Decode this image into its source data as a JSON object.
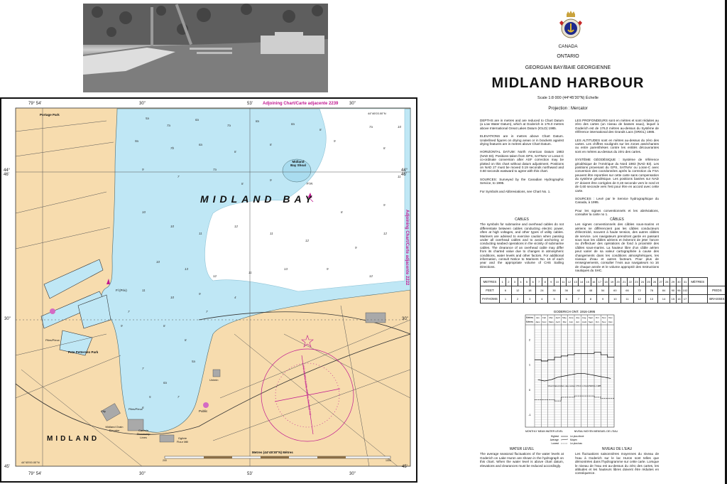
{
  "title_block": {
    "country": "CANADA",
    "province": "ONTARIO",
    "region": "GEORGIAN BAY/BAIE GEORGIENNE",
    "title": "MIDLAND HARBOUR",
    "scale": "Scale 1:8 000  (44°45'30\"N) Échelle",
    "projection": "Projection : Mercator"
  },
  "notes_en": [
    "DEPTHS are in metres and are reduced to Chart Datum (a Low Water Datum), which at Goderich is 176.0 metres above International Great Lakes Datum (IGLD) 1985.",
    "ELEVATIONS are in metres above Chart Datum. Underlined figures on drying areas or in brackets against drying features are in metres above Chart Datum.",
    "HORIZONTAL DATUM: North American Datum 1983 (NAD 83). Positions taken from GPS, SATNAV or Loran-C co-ordinate conversion after ASF correction may be plotted on this chart without datum adjustment. Positions on NAD 27 must be moved 0.19 seconds northward and 0.60 seconds eastward to agree with this chart.",
    "SOURCES: Surveyed by the Canadian Hydrographic Service, to 1995.",
    "For Symbols and Abbreviations, see Chart No. 1."
  ],
  "notes_fr": [
    "LES PROFONDEURS sont en mètres et sont réduites au zéro des cartes (un niveau de basses eaux), lequel à Goderich est de 176,0 mètres au-dessus du Système de référence international des Grands Lacs (SRIGL) 1985.",
    "LES ALTITUDES sont en mètres au-dessus du zéro des cartes. Les chiffres soulignés sur les zones asséchantes ou entre parenthèses contre les entités découvrantes sont en mètres au-dessus du zéro des cartes.",
    "SYSTÈME GÉODÉSIQUE : Système de référence géodésique de l'Amérique du Nord 1983 (NAD 83). Les positions provenant du GPS, SATNAV ou Loran-C avec conversion des coordonnées après la correction du FSA peuvent être reportées sur cette carte sans compensation du système géodésique. Les positions basées sur NAD 27 doivent être corrigées de 0,19 seconde vers le nord et de 0,60 seconde vers l'est pour être en accord avec cette carte.",
    "SOURCES : Levé par le Service hydrographique du Canada, à 1995.",
    "Pour les signes conventionnels et les abréviations, consulter la carte no 1."
  ],
  "cables_en": {
    "heading": "CABLES",
    "text": "The symbols for submarine and overhead cables do not differentiate between cables conducting electric power, often at high voltages, and other types of utility cables. Mariners are advised to exercise caution when passing under all overhead cables and to avoid anchoring or conducting seabed operations in the vicinity of submarine cables. The clearance of an overhead cable may differ from its charted value due to changes in atmospheric conditions, water levels and other factors. For additional information, consult Notice to Mariners No. 16 of each year and the appropriate volume of CHS Sailing Directions."
  },
  "cables_fr": {
    "heading": "CÂBLES",
    "text": "Les signes conventionnels des câbles sous-marins et aériens ne différencient pas les câbles conducteurs d'électricité, souvent à haute tension, des autres câbles de service. Les navigateurs prendront garde en passant sous tous les câbles aériens et éviteront de jeter l'ancre ou d'effectuer des opérations de fond à proximité des câbles sous-marins. La hauteur libre d'un câble aérien peut varier de sa valeur cartographiée à cause des changements dans les conditions atmosphériques, les niveaux d'eau et autres facteurs. Pour plus de renseignements, consulter l'Avis aux navigateurs no 16 de chaque année et le volume approprié des Instructions nautiques du SHC."
  },
  "conversion_table": {
    "metres_label": "METRES",
    "metres_label_fr": "MÈTRES",
    "feet_label": "FEET",
    "feet_label_fr": "PIEDS",
    "fathoms_label": "FATHOMS",
    "fathoms_label_fr": "BRASSES",
    "metres": [
      1,
      2,
      3,
      4,
      5,
      6,
      7,
      8,
      9,
      10,
      11,
      12,
      13,
      14,
      15,
      16,
      17,
      18,
      19,
      20,
      21,
      22,
      23,
      24,
      25,
      26,
      27,
      28,
      29,
      30,
      31
    ],
    "feet": [
      6,
      12,
      18,
      24,
      30,
      36,
      42,
      48,
      54,
      60,
      66,
      72,
      78,
      84,
      90,
      96,
      102
    ],
    "fathoms": [
      1,
      2,
      3,
      4,
      5,
      6,
      7,
      8,
      9,
      10,
      11,
      12,
      13,
      14,
      15,
      16,
      17
    ]
  },
  "hydrograph": {
    "title": "GODERICH ONT. 1916-1995",
    "unit_label": "Metres",
    "unit_label_fr": "Mètres",
    "months": [
      "Jan.",
      "Feb.",
      "Mar.",
      "April",
      "May",
      "June",
      "July",
      "Aug.",
      "Sept.",
      "Oct.",
      "Nov.",
      "Dec."
    ],
    "months_fr": [
      "Janv.",
      "Févr.",
      "Mars",
      "Avril",
      "Mai",
      "Juin",
      "Juil.",
      "Août",
      "Sept.",
      "Oct.",
      "Nov.",
      "Déc."
    ],
    "y_ticks": [
      "2",
      "1",
      "0",
      "-1"
    ],
    "ylim": [
      -1.5,
      2.6
    ],
    "highest": [
      1.2,
      1.15,
      1.2,
      1.3,
      1.35,
      1.4,
      1.45,
      1.45,
      1.45,
      1.5,
      1.4,
      1.3
    ],
    "average": [
      0.4,
      0.35,
      0.4,
      0.5,
      0.55,
      0.6,
      0.65,
      0.65,
      0.6,
      0.55,
      0.5,
      0.45
    ],
    "lowest": [
      -0.4,
      -0.4,
      -0.4,
      -0.45,
      -0.3,
      -0.3,
      -0.25,
      -0.25,
      -0.25,
      -0.3,
      -0.35,
      -0.35
    ],
    "datum_label": "Chart Datum/Zéro des cartes 176.0 m IGLD/SRIGL 1985",
    "caption_en": "MONTHLY MEAN WATER LEVEL",
    "caption_fr": "NIVEAU MOYEN MENSUEL DE L'EAU",
    "legend": [
      {
        "en": "Highest",
        "fr": "Le plus élevé"
      },
      {
        "en": "Average",
        "fr": "Moyen"
      },
      {
        "en": "Lowest",
        "fr": "Le plus bas"
      }
    ]
  },
  "water_level_en": {
    "heading": "WATER LEVEL",
    "text": "The average seasonal fluctuations of the water levels at Goderich on Lake Huron are shown in the hydrograph on this chart. When the water level is above chart datum, elevations and clearances must be reduced accordingly."
  },
  "water_level_fr": {
    "heading": "NIVEAU DE L'EAU",
    "text": "Les fluctuations saisonnières moyennes du niveau de l'eau à Goderich sur le lac Huron sont telles que démontrées dans l'hydrogramme sur cette carte. Lorsque le niveau de l'eau est au-dessus du zéro des cartes, les altitudes et les hauteurs libres doivent être réduites en conséquence."
  },
  "map": {
    "colors": {
      "land": "#f7dcae",
      "shallow": "#bfe7f5",
      "deep": "#ffffff",
      "magenta": "#c01890"
    },
    "top_ticks": [
      "79° 54'",
      "30\"",
      "53'",
      "30\""
    ],
    "bottom_ticks": [
      "79° 54'",
      "30\"",
      "53'",
      "30\""
    ],
    "left_ticks": [
      "44° 46'",
      "30\"",
      "45'"
    ],
    "right_ticks": [
      "44° 46'",
      "30\"",
      "45'"
    ],
    "adjoining_top": "Adjoining Chart/Carte adjacente 2239",
    "adjoining_right": "Adjoining Chart/Carte adjacente 2222",
    "corner_top_right": "44°46'03.00\"N",
    "corner_bottom_left": "44°45'00.00\"N",
    "labels": {
      "bay": "MIDLAND BAY",
      "town": "MIDLAND",
      "portage_park": "Portage Park",
      "pete_pettersen_park": "Pete Pettersen Park",
      "shoal": "Midland Bay Shoal",
      "fl_r": "Fl R",
      "fl_priv": "Fl (Priv)",
      "piles": "Piles/Pieux",
      "piles2": "Piles/Pieux",
      "grain_elevator": "Midland Grain Elevator",
      "canada_steamship": "Canada Steamship Lines",
      "ogilvie": "Ogilvie Flour Mill",
      "public": "Public",
      "unimin": "Unimin",
      "city": "City",
      "compass": "VAR 10°30'W (1995) ANNUAL CHANGE 7'W"
    },
    "scale_bar": {
      "label": "Metres (44°45'30\"N) Mètres",
      "start": "200",
      "end": "1000"
    },
    "soundings": [
      "5a",
      "7a",
      "6a",
      "7a",
      "8a",
      "8a",
      "8",
      "7a",
      "9a",
      "7b",
      "6a",
      "8",
      "8",
      "9",
      "8",
      "9",
      "7",
      "7a",
      "8",
      "9",
      "8",
      "9",
      "10",
      "10",
      "11",
      "12",
      "11",
      "12",
      "9",
      "12",
      "10",
      "13",
      "12",
      "11",
      "13",
      "9",
      "12",
      "11",
      "10",
      "9",
      "8",
      "8",
      "7",
      "7",
      "6a",
      "7",
      "6",
      "5",
      "5a",
      "4",
      "7",
      "9",
      "10",
      "11"
    ]
  }
}
